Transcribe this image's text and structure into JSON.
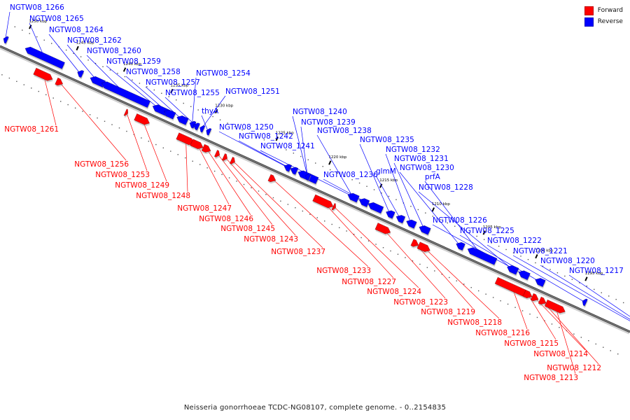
{
  "legend": {
    "forward_label": "Forward",
    "reverse_label": "Reverse",
    "forward_color": "#ff0000",
    "reverse_color": "#0000ff"
  },
  "caption": "Neisseria gonorrhoeae TCDC-NG08107, complete genome. - 0..2154835",
  "colors": {
    "forward": "#ff0000",
    "reverse": "#0000ff",
    "backbone": "#808080"
  },
  "scale_ticks": [
    {
      "label": "1250 kbp",
      "kbp": 1250
    },
    {
      "label": "1245 kbp",
      "kbp": 1245
    },
    {
      "label": "1240 kbp",
      "kbp": 1240
    },
    {
      "label": "1235 kbp",
      "kbp": 1235
    },
    {
      "label": "1230 kbp",
      "kbp": 1230
    },
    {
      "label": "1225 kbp",
      "kbp": 1225
    },
    {
      "label": "1220 kbp",
      "kbp": 1220
    },
    {
      "label": "1215 kbp",
      "kbp": 1215
    },
    {
      "label": "1210 kbp",
      "kbp": 1210
    },
    {
      "label": "1205 kbp",
      "kbp": 1205
    },
    {
      "label": "1200 kbp",
      "kbp": 1200
    },
    {
      "label": "1195 kbp",
      "kbp": 1195
    }
  ],
  "reverse_genes": [
    {
      "name": "NGTW08_1266"
    },
    {
      "name": "NGTW08_1265"
    },
    {
      "name": "NGTW08_1264"
    },
    {
      "name": "NGTW08_1262"
    },
    {
      "name": "NGTW08_1260"
    },
    {
      "name": "NGTW08_1259"
    },
    {
      "name": "NGTW08_1258"
    },
    {
      "name": "NGTW08_1257"
    },
    {
      "name": "NGTW08_1254"
    },
    {
      "name": "NGTW08_1255"
    },
    {
      "name": "NGTW08_1251"
    },
    {
      "name": "thyA"
    },
    {
      "name": "NGTW08_1250"
    },
    {
      "name": "NGTW08_1242"
    },
    {
      "name": "NGTW08_1240"
    },
    {
      "name": "NGTW08_1239"
    },
    {
      "name": "NGTW08_1238"
    },
    {
      "name": "NGTW08_1241"
    },
    {
      "name": "NGTW08_1236"
    },
    {
      "name": "NGTW08_1235"
    },
    {
      "name": "glmM"
    },
    {
      "name": "NGTW08_1232"
    },
    {
      "name": "NGTW08_1231"
    },
    {
      "name": "NGTW08_1230"
    },
    {
      "name": "prfA"
    },
    {
      "name": "NGTW08_1228"
    },
    {
      "name": "NGTW08_1226"
    },
    {
      "name": "NGTW08_1225"
    },
    {
      "name": "NGTW08_1222"
    },
    {
      "name": "NGTW08_1221"
    },
    {
      "name": "NGTW08_1220"
    },
    {
      "name": "NGTW08_1217"
    }
  ],
  "forward_genes": [
    {
      "name": "NGTW08_1261"
    },
    {
      "name": "NGTW08_1256"
    },
    {
      "name": "NGTW08_1253"
    },
    {
      "name": "NGTW08_1249"
    },
    {
      "name": "NGTW08_1248"
    },
    {
      "name": "NGTW08_1247"
    },
    {
      "name": "NGTW08_1246"
    },
    {
      "name": "NGTW08_1245"
    },
    {
      "name": "NGTW08_1243"
    },
    {
      "name": "NGTW08_1237"
    },
    {
      "name": "NGTW08_1233"
    },
    {
      "name": "NGTW08_1227"
    },
    {
      "name": "NGTW08_1224"
    },
    {
      "name": "NGTW08_1223"
    },
    {
      "name": "NGTW08_1219"
    },
    {
      "name": "NGTW08_1218"
    },
    {
      "name": "NGTW08_1216"
    },
    {
      "name": "NGTW08_1215"
    },
    {
      "name": "NGTW08_1214"
    },
    {
      "name": "NGTW08_1212"
    },
    {
      "name": "NGTW08_1213"
    }
  ]
}
